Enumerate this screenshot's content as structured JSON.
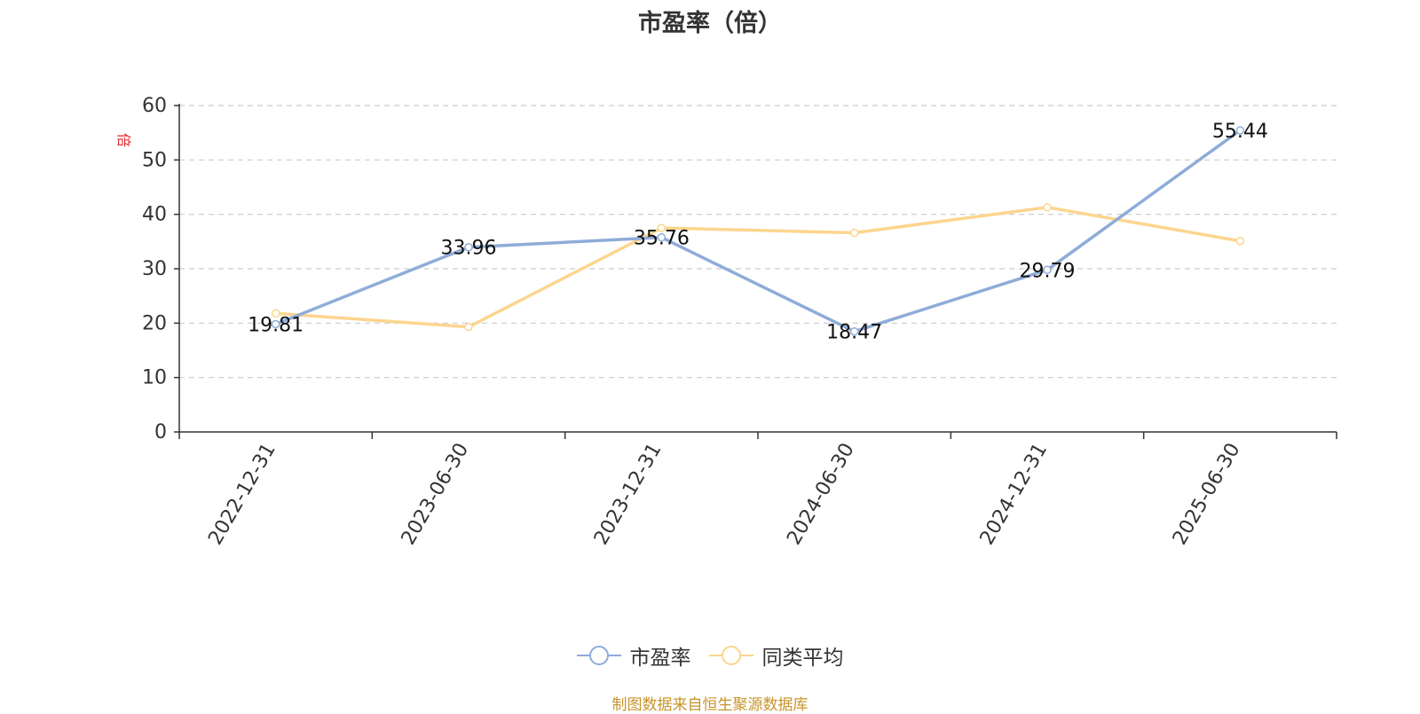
{
  "chart_data": {
    "type": "line",
    "title": "市盈率（倍）",
    "ylabel": "倍",
    "categories": [
      "2022-12-31",
      "2023-06-30",
      "2023-12-31",
      "2024-06-30",
      "2024-12-31",
      "2025-06-30"
    ],
    "ylim": [
      0,
      60
    ],
    "yticks": [
      0,
      10,
      20,
      30,
      40,
      50,
      60
    ],
    "grid": true,
    "legend_position": "bottom-center",
    "series": [
      {
        "name": "市盈率",
        "color": "#8eacd8",
        "values": [
          19.81,
          33.96,
          35.76,
          18.47,
          29.79,
          55.44
        ],
        "labels": [
          "19.81",
          "33.96",
          "35.76",
          "18.47",
          "29.79",
          "55.44"
        ]
      },
      {
        "name": "同类平均",
        "color": "#fcd58e",
        "values": [
          21.8,
          19.3,
          37.5,
          36.6,
          41.3,
          35.1
        ]
      }
    ]
  },
  "legend": {
    "items": [
      "市盈率",
      "同类平均"
    ]
  },
  "footer": {
    "source": "制图数据来自恒生聚源数据库"
  }
}
